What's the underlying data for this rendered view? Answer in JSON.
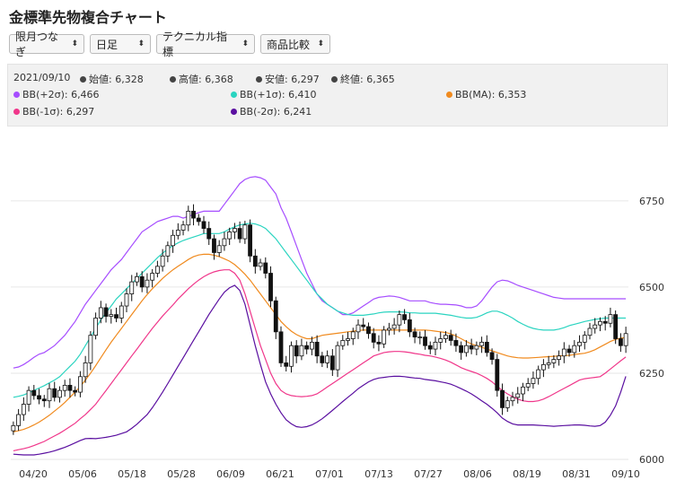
{
  "title": "金標準先物複合チャート",
  "toolbar": {
    "contract": "限月つなぎ",
    "period": "日足",
    "indicator": "テクニカル指標",
    "compare": "商品比較"
  },
  "info": {
    "date": "2021/09/10",
    "open_label": "始値: 6,328",
    "high_label": "高値: 6,368",
    "low_label": "安値: 6,297",
    "close_label": "終値: 6,365",
    "bb_p2": "BB(+2σ): 6,466",
    "bb_p1": "BB(+1σ): 6,410",
    "bb_ma": "BB(MA): 6,353",
    "bb_m1": "BB(-1σ): 6,297",
    "bb_m2": "BB(-2σ): 6,241"
  },
  "colors": {
    "bb_p2": "#a64dff",
    "bb_p1": "#2ad4c0",
    "bb_ma": "#f08a1e",
    "bb_m1": "#f0368a",
    "bb_m2": "#5a0fa0",
    "candle": "#111111",
    "grid": "#e6e6e6"
  },
  "chart_data": {
    "type": "candlestick",
    "ylim": [
      6000,
      6760
    ],
    "y_ticks": [
      "6750",
      "6500",
      "6250",
      "6000"
    ],
    "x_ticks": [
      "04/20",
      "05/06",
      "05/18",
      "05/28",
      "06/09",
      "06/21",
      "07/01",
      "07/13",
      "07/27",
      "08/06",
      "08/19",
      "08/31",
      "09/10"
    ],
    "close": [
      6098,
      6130,
      6160,
      6200,
      6185,
      6175,
      6170,
      6205,
      6180,
      6200,
      6215,
      6200,
      6195,
      6240,
      6280,
      6360,
      6410,
      6440,
      6415,
      6420,
      6410,
      6445,
      6480,
      6515,
      6530,
      6500,
      6520,
      6540,
      6560,
      6590,
      6620,
      6650,
      6665,
      6680,
      6720,
      6700,
      6690,
      6670,
      6640,
      6600,
      6620,
      6640,
      6660,
      6670,
      6640,
      6680,
      6590,
      6560,
      6570,
      6540,
      6460,
      6370,
      6280,
      6270,
      6330,
      6300,
      6330,
      6320,
      6340,
      6300,
      6280,
      6300,
      6260,
      6330,
      6345,
      6350,
      6370,
      6390,
      6385,
      6365,
      6340,
      6335,
      6375,
      6380,
      6390,
      6420,
      6405,
      6370,
      6355,
      6355,
      6330,
      6320,
      6340,
      6350,
      6360,
      6345,
      6330,
      6310,
      6330,
      6320,
      6330,
      6340,
      6310,
      6290,
      6200,
      6150,
      6170,
      6180,
      6190,
      6210,
      6220,
      6235,
      6260,
      6275,
      6280,
      6290,
      6300,
      6320,
      6310,
      6330,
      6340,
      6360,
      6380,
      6390,
      6400,
      6395,
      6420,
      6350,
      6330,
      6365
    ],
    "bb_p2": [
      6265,
      6268,
      6275,
      6285,
      6296,
      6305,
      6310,
      6320,
      6330,
      6345,
      6360,
      6380,
      6400,
      6425,
      6450,
      6470,
      6490,
      6510,
      6530,
      6550,
      6565,
      6580,
      6600,
      6620,
      6640,
      6660,
      6670,
      6680,
      6690,
      6695,
      6700,
      6705,
      6705,
      6700,
      6705,
      6710,
      6716,
      6720,
      6720,
      6720,
      6720,
      6740,
      6760,
      6780,
      6800,
      6812,
      6818,
      6820,
      6817,
      6810,
      6790,
      6770,
      6730,
      6700,
      6660,
      6620,
      6580,
      6540,
      6510,
      6480,
      6460,
      6450,
      6440,
      6430,
      6420,
      6420,
      6425,
      6435,
      6445,
      6455,
      6465,
      6470,
      6472,
      6474,
      6473,
      6470,
      6465,
      6460,
      6460,
      6460,
      6460,
      6455,
      6452,
      6450,
      6450,
      6449,
      6448,
      6445,
      6440,
      6440,
      6445,
      6460,
      6480,
      6500,
      6515,
      6520,
      6518,
      6512,
      6505,
      6500,
      6495,
      6490,
      6485,
      6480,
      6475,
      6470,
      6468,
      6466,
      6466,
      6466,
      6466,
      6466,
      6466,
      6466,
      6466,
      6466,
      6466,
      6466,
      6466,
      6466
    ],
    "bb_p1": [
      6180,
      6183,
      6187,
      6193,
      6200,
      6207,
      6214,
      6222,
      6230,
      6240,
      6255,
      6270,
      6285,
      6305,
      6330,
      6355,
      6380,
      6405,
      6425,
      6445,
      6465,
      6480,
      6495,
      6510,
      6525,
      6540,
      6555,
      6570,
      6585,
      6598,
      6610,
      6620,
      6628,
      6635,
      6640,
      6645,
      6650,
      6655,
      6655,
      6655,
      6655,
      6660,
      6668,
      6675,
      6680,
      6683,
      6685,
      6683,
      6678,
      6670,
      6655,
      6640,
      6620,
      6600,
      6580,
      6560,
      6540,
      6520,
      6500,
      6480,
      6465,
      6450,
      6440,
      6430,
      6425,
      6420,
      6418,
      6418,
      6418,
      6420,
      6422,
      6425,
      6427,
      6428,
      6428,
      6428,
      6427,
      6425,
      6425,
      6424,
      6424,
      6424,
      6424,
      6422,
      6420,
      6418,
      6415,
      6412,
      6410,
      6410,
      6412,
      6418,
      6425,
      6430,
      6430,
      6425,
      6418,
      6410,
      6400,
      6392,
      6385,
      6380,
      6377,
      6375,
      6375,
      6375,
      6378,
      6382,
      6388,
      6392,
      6396,
      6400,
      6403,
      6406,
      6408,
      6410,
      6410,
      6410,
      6410,
      6410
    ],
    "bb_ma": [
      6080,
      6083,
      6087,
      6093,
      6100,
      6108,
      6118,
      6128,
      6140,
      6152,
      6165,
      6180,
      6195,
      6212,
      6230,
      6250,
      6272,
      6295,
      6318,
      6340,
      6360,
      6380,
      6400,
      6420,
      6440,
      6460,
      6478,
      6495,
      6510,
      6525,
      6538,
      6550,
      6560,
      6570,
      6580,
      6588,
      6593,
      6595,
      6595,
      6592,
      6588,
      6582,
      6575,
      6565,
      6552,
      6537,
      6520,
      6500,
      6480,
      6460,
      6440,
      6420,
      6400,
      6385,
      6372,
      6362,
      6355,
      6350,
      6350,
      6355,
      6360,
      6362,
      6364,
      6366,
      6368,
      6370,
      6372,
      6374,
      6375,
      6375,
      6375,
      6375,
      6375,
      6375,
      6375,
      6375,
      6375,
      6375,
      6375,
      6375,
      6375,
      6374,
      6372,
      6370,
      6368,
      6364,
      6358,
      6350,
      6342,
      6335,
      6330,
      6325,
      6320,
      6315,
      6310,
      6305,
      6300,
      6297,
      6295,
      6294,
      6294,
      6295,
      6296,
      6297,
      6298,
      6299,
      6300,
      6301,
      6302,
      6304,
      6306,
      6308,
      6312,
      6318,
      6326,
      6334,
      6342,
      6348,
      6352,
      6353
    ],
    "bb_m1": [
      6025,
      6028,
      6031,
      6035,
      6040,
      6046,
      6052,
      6060,
      6068,
      6076,
      6085,
      6095,
      6105,
      6118,
      6130,
      6145,
      6160,
      6180,
      6200,
      6220,
      6240,
      6260,
      6280,
      6300,
      6320,
      6340,
      6360,
      6380,
      6398,
      6416,
      6432,
      6448,
      6465,
      6480,
      6495,
      6508,
      6520,
      6530,
      6538,
      6544,
      6548,
      6550,
      6550,
      6540,
      6520,
      6480,
      6430,
      6380,
      6330,
      6290,
      6250,
      6220,
      6200,
      6190,
      6185,
      6183,
      6182,
      6183,
      6185,
      6190,
      6200,
      6210,
      6220,
      6230,
      6240,
      6250,
      6260,
      6270,
      6280,
      6290,
      6300,
      6305,
      6310,
      6312,
      6313,
      6313,
      6312,
      6310,
      6307,
      6305,
      6302,
      6300,
      6297,
      6293,
      6288,
      6282,
      6274,
      6266,
      6260,
      6255,
      6250,
      6243,
      6235,
      6225,
      6212,
      6200,
      6190,
      6182,
      6175,
      6170,
      6168,
      6168,
      6170,
      6175,
      6182,
      6190,
      6198,
      6206,
      6214,
      6222,
      6230,
      6234,
      6236,
      6238,
      6240,
      6250,
      6262,
      6274,
      6286,
      6297
    ],
    "bb_m2": [
      6015,
      6014,
      6013,
      6013,
      6013,
      6015,
      6018,
      6021,
      6025,
      6030,
      6035,
      6041,
      6048,
      6055,
      6060,
      6061,
      6060,
      6062,
      6064,
      6067,
      6070,
      6075,
      6080,
      6090,
      6102,
      6116,
      6130,
      6150,
      6172,
      6195,
      6220,
      6245,
      6270,
      6295,
      6320,
      6345,
      6370,
      6395,
      6420,
      6443,
      6465,
      6485,
      6498,
      6505,
      6490,
      6450,
      6390,
      6330,
      6275,
      6225,
      6190,
      6160,
      6135,
      6115,
      6103,
      6095,
      6093,
      6095,
      6100,
      6108,
      6118,
      6130,
      6142,
      6155,
      6168,
      6180,
      6192,
      6205,
      6215,
      6225,
      6232,
      6236,
      6238,
      6240,
      6241,
      6241,
      6240,
      6238,
      6236,
      6235,
      6232,
      6230,
      6228,
      6225,
      6222,
      6218,
      6212,
      6205,
      6198,
      6190,
      6180,
      6170,
      6160,
      6148,
      6135,
      6120,
      6110,
      6103,
      6100,
      6100,
      6100,
      6100,
      6099,
      6098,
      6097,
      6096,
      6097,
      6098,
      6099,
      6100,
      6100,
      6099,
      6097,
      6096,
      6098,
      6108,
      6128,
      6155,
      6195,
      6241
    ]
  }
}
